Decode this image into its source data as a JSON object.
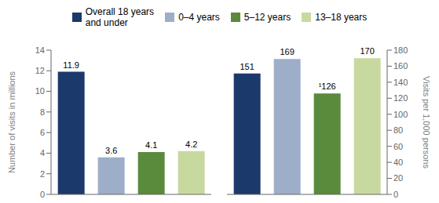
{
  "chart_data": [
    {
      "type": "bar",
      "categories": [
        "Overall 18 years\nand under",
        "0–4 years",
        "5–12 years",
        "13–18 years"
      ],
      "values": [
        11.9,
        3.6,
        4.1,
        4.2
      ],
      "colors": [
        "#1b3a6b",
        "#9dafc8",
        "#5a8a3c",
        "#c8d9a0"
      ],
      "ylabel": "Number of visits in millions",
      "ylim": [
        0,
        14
      ],
      "yticks": [
        0,
        2,
        4,
        6,
        8,
        10,
        12,
        14
      ],
      "data_labels": true,
      "tick_labels": "y",
      "legend": "top"
    },
    {
      "type": "bar",
      "categories": [
        "Overall 18 years\nand under",
        "0–4 years",
        "5–12 years",
        "13–18 years"
      ],
      "values": [
        151,
        169,
        126,
        170
      ],
      "value_labels": [
        "151",
        "169",
        "¹126",
        "170"
      ],
      "colors": [
        "#1b3a6b",
        "#9dafc8",
        "#5a8a3c",
        "#c8d9a0"
      ],
      "ylabel": "Visits per 1,000 persons",
      "ylim": [
        0,
        180
      ],
      "yticks": [
        0,
        20,
        40,
        60,
        80,
        100,
        120,
        140,
        160,
        180
      ],
      "data_labels": true,
      "tick_labels": "y"
    }
  ]
}
